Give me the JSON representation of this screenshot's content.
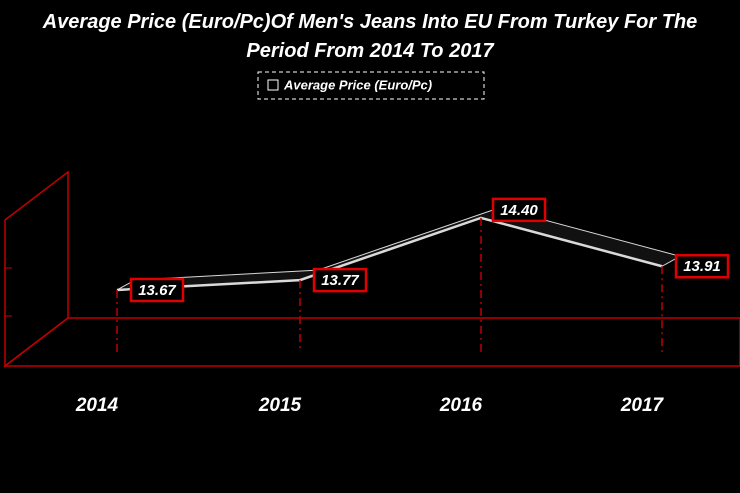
{
  "chart_data": {
    "type": "line",
    "title": "Average Price (Euro/Pc)Of Men's Jeans Into EU From Turkey For The Period From 2014 To 2017",
    "categories": [
      "2014",
      "2015",
      "2016",
      "2017"
    ],
    "series": [
      {
        "name": "Average Price (Euro/Pc)",
        "color": "#d9d9d9",
        "values": [
          13.67,
          13.77,
          14.4,
          13.91
        ],
        "value_labels": [
          "13.67",
          "13.77",
          "14.40",
          "13.91"
        ]
      }
    ],
    "ylim": [
      12.9,
      14.5
    ]
  }
}
